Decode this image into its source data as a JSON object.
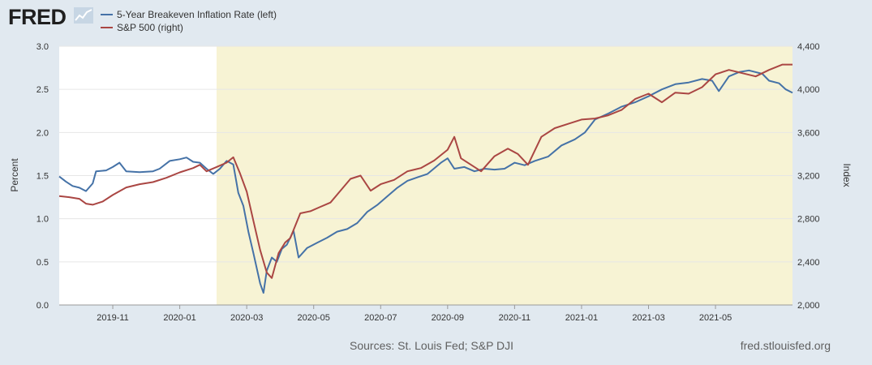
{
  "brand": {
    "logo_text": "FRED",
    "site": "fred.stlouisfed.org",
    "sources": "Sources: St. Louis Fed; S&P DJI"
  },
  "colors": {
    "blue": "#4572a7",
    "red": "#aa4643",
    "recession": "#f7f3d4",
    "plot_bg": "#ffffff",
    "page_bg": "#e1e9f0",
    "grid": "#e6e6e6"
  },
  "chart_data": {
    "type": "line",
    "title": "",
    "xlabel": "",
    "ylabel_left": "Percent",
    "ylabel_right": "Index",
    "x_range_months": [
      0,
      21.9
    ],
    "ylim_left": [
      0.0,
      3.0
    ],
    "ylim_right": [
      2000,
      4400
    ],
    "yticks_left": [
      "0.0",
      "0.5",
      "1.0",
      "1.5",
      "2.0",
      "2.5",
      "3.0"
    ],
    "yticks_right": [
      "2,000",
      "2,400",
      "2,800",
      "3,200",
      "3,600",
      "4,000",
      "4,400"
    ],
    "yticks_left_values": [
      0,
      0.5,
      1.0,
      1.5,
      2.0,
      2.5,
      3.0
    ],
    "yticks_right_values": [
      2000,
      2400,
      2800,
      3200,
      3600,
      4000,
      4400
    ],
    "xticks": [
      {
        "label": "2019-11",
        "month": 1.6
      },
      {
        "label": "2020-01",
        "month": 3.6
      },
      {
        "label": "2020-03",
        "month": 5.6
      },
      {
        "label": "2020-05",
        "month": 7.6
      },
      {
        "label": "2020-07",
        "month": 9.6
      },
      {
        "label": "2020-09",
        "month": 11.6
      },
      {
        "label": "2020-11",
        "month": 13.6
      },
      {
        "label": "2021-01",
        "month": 15.6
      },
      {
        "label": "2021-03",
        "month": 17.6
      },
      {
        "label": "2021-05",
        "month": 19.6
      }
    ],
    "recession": {
      "start_month": 4.7,
      "end_month": 21.9
    },
    "series": [
      {
        "name": "5-Year Breakeven Inflation Rate (left)",
        "axis": "left",
        "color": "#4572a7",
        "points": [
          [
            0,
            1.49
          ],
          [
            0.2,
            1.43
          ],
          [
            0.4,
            1.38
          ],
          [
            0.6,
            1.36
          ],
          [
            0.8,
            1.32
          ],
          [
            1.0,
            1.41
          ],
          [
            1.1,
            1.55
          ],
          [
            1.4,
            1.56
          ],
          [
            1.6,
            1.6
          ],
          [
            1.8,
            1.65
          ],
          [
            2.0,
            1.55
          ],
          [
            2.4,
            1.54
          ],
          [
            2.8,
            1.55
          ],
          [
            3.0,
            1.58
          ],
          [
            3.3,
            1.67
          ],
          [
            3.6,
            1.69
          ],
          [
            3.8,
            1.71
          ],
          [
            4.0,
            1.66
          ],
          [
            4.2,
            1.65
          ],
          [
            4.4,
            1.58
          ],
          [
            4.6,
            1.52
          ],
          [
            4.8,
            1.58
          ],
          [
            5.0,
            1.67
          ],
          [
            5.2,
            1.63
          ],
          [
            5.35,
            1.3
          ],
          [
            5.5,
            1.15
          ],
          [
            5.65,
            0.85
          ],
          [
            5.8,
            0.6
          ],
          [
            6.0,
            0.25
          ],
          [
            6.1,
            0.14
          ],
          [
            6.2,
            0.4
          ],
          [
            6.35,
            0.55
          ],
          [
            6.5,
            0.5
          ],
          [
            6.65,
            0.65
          ],
          [
            6.8,
            0.7
          ],
          [
            7.0,
            0.86
          ],
          [
            7.15,
            0.55
          ],
          [
            7.4,
            0.66
          ],
          [
            7.7,
            0.72
          ],
          [
            8.0,
            0.78
          ],
          [
            8.3,
            0.85
          ],
          [
            8.6,
            0.88
          ],
          [
            8.9,
            0.95
          ],
          [
            9.2,
            1.08
          ],
          [
            9.5,
            1.16
          ],
          [
            9.8,
            1.26
          ],
          [
            10.1,
            1.36
          ],
          [
            10.4,
            1.44
          ],
          [
            10.7,
            1.48
          ],
          [
            11.0,
            1.52
          ],
          [
            11.4,
            1.65
          ],
          [
            11.6,
            1.7
          ],
          [
            11.8,
            1.58
          ],
          [
            12.1,
            1.6
          ],
          [
            12.4,
            1.55
          ],
          [
            12.7,
            1.58
          ],
          [
            13.0,
            1.57
          ],
          [
            13.3,
            1.58
          ],
          [
            13.6,
            1.65
          ],
          [
            13.9,
            1.62
          ],
          [
            14.2,
            1.67
          ],
          [
            14.6,
            1.72
          ],
          [
            15.0,
            1.85
          ],
          [
            15.4,
            1.92
          ],
          [
            15.7,
            2.0
          ],
          [
            16.0,
            2.15
          ],
          [
            16.4,
            2.22
          ],
          [
            16.8,
            2.3
          ],
          [
            17.2,
            2.35
          ],
          [
            17.6,
            2.42
          ],
          [
            18.0,
            2.5
          ],
          [
            18.4,
            2.56
          ],
          [
            18.8,
            2.58
          ],
          [
            19.2,
            2.62
          ],
          [
            19.5,
            2.6
          ],
          [
            19.7,
            2.48
          ],
          [
            20.0,
            2.65
          ],
          [
            20.3,
            2.7
          ],
          [
            20.6,
            2.72
          ],
          [
            21.0,
            2.68
          ],
          [
            21.2,
            2.6
          ],
          [
            21.5,
            2.57
          ],
          [
            21.7,
            2.5
          ],
          [
            21.9,
            2.46
          ]
        ]
      },
      {
        "name": "S&P 500 (right)",
        "axis": "right",
        "color": "#aa4643",
        "points": [
          [
            0,
            3010
          ],
          [
            0.3,
            3000
          ],
          [
            0.6,
            2985
          ],
          [
            0.8,
            2940
          ],
          [
            1.0,
            2930
          ],
          [
            1.3,
            2960
          ],
          [
            1.6,
            3020
          ],
          [
            2.0,
            3090
          ],
          [
            2.4,
            3120
          ],
          [
            2.8,
            3140
          ],
          [
            3.2,
            3180
          ],
          [
            3.6,
            3230
          ],
          [
            4.0,
            3270
          ],
          [
            4.2,
            3300
          ],
          [
            4.4,
            3240
          ],
          [
            4.7,
            3280
          ],
          [
            5.0,
            3320
          ],
          [
            5.2,
            3370
          ],
          [
            5.4,
            3220
          ],
          [
            5.6,
            3050
          ],
          [
            5.8,
            2780
          ],
          [
            6.0,
            2510
          ],
          [
            6.2,
            2300
          ],
          [
            6.35,
            2250
          ],
          [
            6.55,
            2480
          ],
          [
            6.75,
            2580
          ],
          [
            6.9,
            2620
          ],
          [
            7.2,
            2850
          ],
          [
            7.5,
            2870
          ],
          [
            7.8,
            2910
          ],
          [
            8.1,
            2950
          ],
          [
            8.4,
            3060
          ],
          [
            8.7,
            3170
          ],
          [
            9.0,
            3200
          ],
          [
            9.3,
            3060
          ],
          [
            9.6,
            3120
          ],
          [
            10.0,
            3160
          ],
          [
            10.4,
            3240
          ],
          [
            10.8,
            3270
          ],
          [
            11.2,
            3340
          ],
          [
            11.6,
            3440
          ],
          [
            11.8,
            3560
          ],
          [
            12.0,
            3360
          ],
          [
            12.3,
            3300
          ],
          [
            12.6,
            3240
          ],
          [
            13.0,
            3380
          ],
          [
            13.4,
            3450
          ],
          [
            13.7,
            3400
          ],
          [
            14.0,
            3300
          ],
          [
            14.4,
            3560
          ],
          [
            14.8,
            3640
          ],
          [
            15.2,
            3680
          ],
          [
            15.6,
            3720
          ],
          [
            16.0,
            3730
          ],
          [
            16.4,
            3760
          ],
          [
            16.8,
            3810
          ],
          [
            17.2,
            3910
          ],
          [
            17.6,
            3960
          ],
          [
            18.0,
            3880
          ],
          [
            18.4,
            3970
          ],
          [
            18.8,
            3960
          ],
          [
            19.2,
            4020
          ],
          [
            19.6,
            4140
          ],
          [
            20.0,
            4180
          ],
          [
            20.4,
            4150
          ],
          [
            20.8,
            4120
          ],
          [
            21.2,
            4180
          ],
          [
            21.6,
            4230
          ],
          [
            21.9,
            4230
          ]
        ]
      }
    ]
  }
}
